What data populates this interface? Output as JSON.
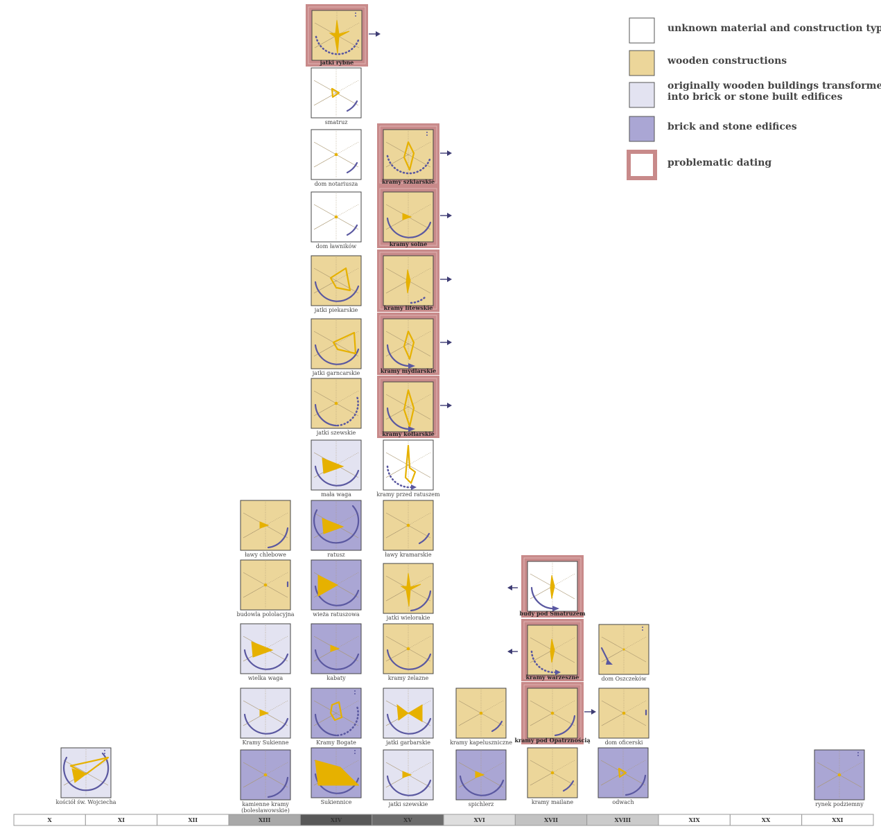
{
  "colors": {
    "unknown": "#ffffff",
    "wooden": "#ecd69a",
    "transformed": "#e3e3f1",
    "brick": "#aaa6d4",
    "problematic": "#c88a8a",
    "glyph": "#e6b100",
    "arc": "#5a58a0",
    "arrow": "#3e3c74"
  },
  "legend": [
    {
      "type": "unknown",
      "text": "unknown material and construction type"
    },
    {
      "type": "wooden",
      "text": "wooden constructions"
    },
    {
      "type": "transformed",
      "text": "originally wooden buildings transformed into brick or stone built edifices"
    },
    {
      "type": "brick",
      "text": "brick and stone edifices"
    },
    {
      "type": "problematic",
      "text": "problematic dating"
    }
  ],
  "centuries": [
    {
      "label": "X",
      "shade": "#ffffff"
    },
    {
      "label": "XI",
      "shade": "#ffffff"
    },
    {
      "label": "XII",
      "shade": "#ffffff"
    },
    {
      "label": "XIII",
      "shade": "#a9a9a9"
    },
    {
      "label": "XIV",
      "shade": "#585858"
    },
    {
      "label": "XV",
      "shade": "#6c6c6c"
    },
    {
      "label": "XVI",
      "shade": "#dedede"
    },
    {
      "label": "XVII",
      "shade": "#c2c2c2"
    },
    {
      "label": "XVIII",
      "shade": "#cbcbcb"
    },
    {
      "label": "XIX",
      "shade": "#ffffff"
    },
    {
      "label": "XX",
      "shade": "#ffffff"
    },
    {
      "label": "XXI",
      "shade": "#ffffff"
    }
  ],
  "buildings": [
    {
      "name": "jatki rybne",
      "type": "wooden",
      "problematic": true,
      "arrow": "right",
      "glyph": "star-solid",
      "arc": "dotted",
      "dots": true
    },
    {
      "name": "smatruz",
      "type": "unknown",
      "problematic": false,
      "glyph": "tri-outline",
      "arc": "short"
    },
    {
      "name": "dom notariusza",
      "type": "unknown",
      "problematic": false,
      "glyph": "dot",
      "arc": "short"
    },
    {
      "name": "dom ławników",
      "type": "unknown",
      "problematic": false,
      "glyph": "dot",
      "arc": "short"
    },
    {
      "name": "jatki piekarskie",
      "type": "wooden",
      "problematic": false,
      "glyph": "poly-outline",
      "arc": "half"
    },
    {
      "name": "jatki garncarskie",
      "type": "wooden",
      "problematic": false,
      "glyph": "poly-outline2",
      "arc": "half"
    },
    {
      "name": "jatki szewskie",
      "type": "wooden",
      "problematic": false,
      "glyph": "dot",
      "arc": "half-dotted"
    },
    {
      "name": "mała waga",
      "type": "transformed",
      "problematic": false,
      "glyph": "tri-solid",
      "arc": "half"
    },
    {
      "name": "kramy szklarskie",
      "type": "wooden",
      "problematic": true,
      "arrow": "right",
      "glyph": "diamond-outline",
      "arc": "dotted",
      "dots": true
    },
    {
      "name": "kramy solne",
      "type": "wooden",
      "problematic": true,
      "arrow": "right",
      "glyph": "small-tri",
      "arc": "half"
    },
    {
      "name": "kramy litewskie",
      "type": "wooden",
      "problematic": true,
      "arrow": "right",
      "glyph": "spike",
      "arc": "short-dotted"
    },
    {
      "name": "kramy mydlarskie",
      "type": "wooden",
      "problematic": true,
      "arrow": "right",
      "glyph": "diamond-outline",
      "arc": "half-arrow"
    },
    {
      "name": "kramy kołlarskie",
      "type": "wooden",
      "problematic": true,
      "arrow": "right",
      "glyph": "long-diamond",
      "arc": "half-arrow"
    },
    {
      "name": "kramy przed ratuszem",
      "type": "unknown",
      "problematic": false,
      "glyph": "bolt",
      "arc": "dotted-arrow"
    },
    {
      "name": "ławy chlebowe",
      "type": "wooden",
      "problematic": false,
      "glyph": "small-tri",
      "arc": "quarter"
    },
    {
      "name": "ratusz",
      "type": "brick",
      "problematic": false,
      "glyph": "tri-solid",
      "arc": "full"
    },
    {
      "name": "ławy kramarskie",
      "type": "wooden",
      "problematic": false,
      "glyph": "dot",
      "arc": "short"
    },
    {
      "name": "budowla pololacyjna",
      "type": "wooden",
      "problematic": false,
      "glyph": "dot",
      "arc": "tick"
    },
    {
      "name": "wieża ratuszowa",
      "type": "brick",
      "problematic": false,
      "glyph": "tri-big",
      "arc": "half"
    },
    {
      "name": "jatki wielorakie",
      "type": "wooden",
      "problematic": false,
      "glyph": "star-solid",
      "arc": "quarter"
    },
    {
      "name": "wielka waga",
      "type": "transformed",
      "problematic": false,
      "glyph": "tri-solid",
      "arc": "half"
    },
    {
      "name": "kabaty",
      "type": "brick",
      "problematic": false,
      "glyph": "small-tri",
      "arc": "half"
    },
    {
      "name": "kramy żelazne",
      "type": "wooden",
      "problematic": false,
      "glyph": "dot",
      "arc": "half"
    },
    {
      "name": "Kramy Sukienne",
      "type": "transformed",
      "problematic": false,
      "glyph": "small-tri",
      "arc": "half"
    },
    {
      "name": "Kramy Bogate",
      "type": "brick",
      "problematic": false,
      "glyph": "poly-outline3",
      "arc": "half-dotted",
      "dots": true
    },
    {
      "name": "jatki garbarskie",
      "type": "transformed",
      "problematic": false,
      "glyph": "bowtie",
      "arc": "half"
    },
    {
      "name": "kramy kapeluszniczne",
      "type": "wooden",
      "problematic": false,
      "glyph": "dot",
      "arc": "short"
    },
    {
      "name": "kościół św. Wojciecha",
      "type": "transformed",
      "problematic": false,
      "glyph": "fan",
      "arc": "full",
      "dots": true
    },
    {
      "name": "kamienne kramy (bolesławowskie)",
      "type": "brick",
      "problematic": false,
      "glyph": "dot",
      "arc": "quarter"
    },
    {
      "name": "Sukiennice",
      "type": "brick",
      "problematic": false,
      "glyph": "big-fan",
      "arc": "half",
      "dots": true
    },
    {
      "name": "jatki szewskie",
      "type": "transformed",
      "problematic": false,
      "glyph": "small-tri",
      "arc": "half"
    },
    {
      "name": "spichlerz",
      "type": "brick",
      "problematic": false,
      "glyph": "small-tri",
      "arc": "half"
    },
    {
      "name": "kramy mailane",
      "type": "wooden",
      "problematic": false,
      "glyph": "dot",
      "arc": "short"
    },
    {
      "name": "odwach",
      "type": "brick",
      "problematic": false,
      "glyph": "tri-outline",
      "arc": "quarter"
    },
    {
      "name": "budy pod Smatruzem",
      "type": "unknown",
      "problematic": true,
      "arrow": "left",
      "glyph": "spike",
      "arc": "half-arrow"
    },
    {
      "name": "kramy warzeszne",
      "type": "wooden",
      "problematic": true,
      "arrow": "left",
      "glyph": "spike",
      "arc": "dotted-arrow"
    },
    {
      "name": "kramy pod Opatrznością",
      "type": "wooden",
      "problematic": true,
      "arrow": "right",
      "glyph": "dot",
      "arc": "quarter"
    },
    {
      "name": "dom Oszczeków",
      "type": "wooden",
      "problematic": false,
      "glyph": "small-dot",
      "arc": "arrow-only",
      "dots": true
    },
    {
      "name": "dom oficerski",
      "type": "wooden",
      "problematic": false,
      "glyph": "dot",
      "arc": "tick"
    },
    {
      "name": "rynek podziemny",
      "type": "brick",
      "problematic": false,
      "glyph": "dot",
      "arc": "none",
      "dots": true
    }
  ]
}
